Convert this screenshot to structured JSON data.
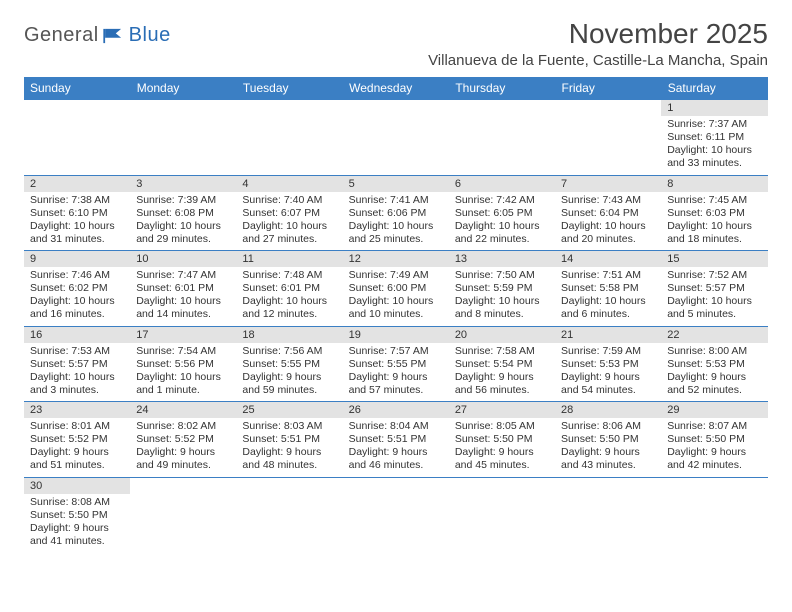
{
  "brand": {
    "part1": "General",
    "part2": "Blue"
  },
  "title": "November 2025",
  "location": "Villanueva de la Fuente, Castille-La Mancha, Spain",
  "colors": {
    "header_bg": "#3b7fc4",
    "header_text": "#ffffff",
    "daynum_bg": "#e3e3e3",
    "border": "#3b7fc4",
    "text": "#333333",
    "brand_gray": "#555555",
    "brand_blue": "#2a6db5"
  },
  "columns": [
    "Sunday",
    "Monday",
    "Tuesday",
    "Wednesday",
    "Thursday",
    "Friday",
    "Saturday"
  ],
  "weeks": [
    [
      null,
      null,
      null,
      null,
      null,
      null,
      {
        "n": "1",
        "r": "Sunrise: 7:37 AM",
        "s": "Sunset: 6:11 PM",
        "d1": "Daylight: 10 hours",
        "d2": "and 33 minutes."
      }
    ],
    [
      {
        "n": "2",
        "r": "Sunrise: 7:38 AM",
        "s": "Sunset: 6:10 PM",
        "d1": "Daylight: 10 hours",
        "d2": "and 31 minutes."
      },
      {
        "n": "3",
        "r": "Sunrise: 7:39 AM",
        "s": "Sunset: 6:08 PM",
        "d1": "Daylight: 10 hours",
        "d2": "and 29 minutes."
      },
      {
        "n": "4",
        "r": "Sunrise: 7:40 AM",
        "s": "Sunset: 6:07 PM",
        "d1": "Daylight: 10 hours",
        "d2": "and 27 minutes."
      },
      {
        "n": "5",
        "r": "Sunrise: 7:41 AM",
        "s": "Sunset: 6:06 PM",
        "d1": "Daylight: 10 hours",
        "d2": "and 25 minutes."
      },
      {
        "n": "6",
        "r": "Sunrise: 7:42 AM",
        "s": "Sunset: 6:05 PM",
        "d1": "Daylight: 10 hours",
        "d2": "and 22 minutes."
      },
      {
        "n": "7",
        "r": "Sunrise: 7:43 AM",
        "s": "Sunset: 6:04 PM",
        "d1": "Daylight: 10 hours",
        "d2": "and 20 minutes."
      },
      {
        "n": "8",
        "r": "Sunrise: 7:45 AM",
        "s": "Sunset: 6:03 PM",
        "d1": "Daylight: 10 hours",
        "d2": "and 18 minutes."
      }
    ],
    [
      {
        "n": "9",
        "r": "Sunrise: 7:46 AM",
        "s": "Sunset: 6:02 PM",
        "d1": "Daylight: 10 hours",
        "d2": "and 16 minutes."
      },
      {
        "n": "10",
        "r": "Sunrise: 7:47 AM",
        "s": "Sunset: 6:01 PM",
        "d1": "Daylight: 10 hours",
        "d2": "and 14 minutes."
      },
      {
        "n": "11",
        "r": "Sunrise: 7:48 AM",
        "s": "Sunset: 6:01 PM",
        "d1": "Daylight: 10 hours",
        "d2": "and 12 minutes."
      },
      {
        "n": "12",
        "r": "Sunrise: 7:49 AM",
        "s": "Sunset: 6:00 PM",
        "d1": "Daylight: 10 hours",
        "d2": "and 10 minutes."
      },
      {
        "n": "13",
        "r": "Sunrise: 7:50 AM",
        "s": "Sunset: 5:59 PM",
        "d1": "Daylight: 10 hours",
        "d2": "and 8 minutes."
      },
      {
        "n": "14",
        "r": "Sunrise: 7:51 AM",
        "s": "Sunset: 5:58 PM",
        "d1": "Daylight: 10 hours",
        "d2": "and 6 minutes."
      },
      {
        "n": "15",
        "r": "Sunrise: 7:52 AM",
        "s": "Sunset: 5:57 PM",
        "d1": "Daylight: 10 hours",
        "d2": "and 5 minutes."
      }
    ],
    [
      {
        "n": "16",
        "r": "Sunrise: 7:53 AM",
        "s": "Sunset: 5:57 PM",
        "d1": "Daylight: 10 hours",
        "d2": "and 3 minutes."
      },
      {
        "n": "17",
        "r": "Sunrise: 7:54 AM",
        "s": "Sunset: 5:56 PM",
        "d1": "Daylight: 10 hours",
        "d2": "and 1 minute."
      },
      {
        "n": "18",
        "r": "Sunrise: 7:56 AM",
        "s": "Sunset: 5:55 PM",
        "d1": "Daylight: 9 hours",
        "d2": "and 59 minutes."
      },
      {
        "n": "19",
        "r": "Sunrise: 7:57 AM",
        "s": "Sunset: 5:55 PM",
        "d1": "Daylight: 9 hours",
        "d2": "and 57 minutes."
      },
      {
        "n": "20",
        "r": "Sunrise: 7:58 AM",
        "s": "Sunset: 5:54 PM",
        "d1": "Daylight: 9 hours",
        "d2": "and 56 minutes."
      },
      {
        "n": "21",
        "r": "Sunrise: 7:59 AM",
        "s": "Sunset: 5:53 PM",
        "d1": "Daylight: 9 hours",
        "d2": "and 54 minutes."
      },
      {
        "n": "22",
        "r": "Sunrise: 8:00 AM",
        "s": "Sunset: 5:53 PM",
        "d1": "Daylight: 9 hours",
        "d2": "and 52 minutes."
      }
    ],
    [
      {
        "n": "23",
        "r": "Sunrise: 8:01 AM",
        "s": "Sunset: 5:52 PM",
        "d1": "Daylight: 9 hours",
        "d2": "and 51 minutes."
      },
      {
        "n": "24",
        "r": "Sunrise: 8:02 AM",
        "s": "Sunset: 5:52 PM",
        "d1": "Daylight: 9 hours",
        "d2": "and 49 minutes."
      },
      {
        "n": "25",
        "r": "Sunrise: 8:03 AM",
        "s": "Sunset: 5:51 PM",
        "d1": "Daylight: 9 hours",
        "d2": "and 48 minutes."
      },
      {
        "n": "26",
        "r": "Sunrise: 8:04 AM",
        "s": "Sunset: 5:51 PM",
        "d1": "Daylight: 9 hours",
        "d2": "and 46 minutes."
      },
      {
        "n": "27",
        "r": "Sunrise: 8:05 AM",
        "s": "Sunset: 5:50 PM",
        "d1": "Daylight: 9 hours",
        "d2": "and 45 minutes."
      },
      {
        "n": "28",
        "r": "Sunrise: 8:06 AM",
        "s": "Sunset: 5:50 PM",
        "d1": "Daylight: 9 hours",
        "d2": "and 43 minutes."
      },
      {
        "n": "29",
        "r": "Sunrise: 8:07 AM",
        "s": "Sunset: 5:50 PM",
        "d1": "Daylight: 9 hours",
        "d2": "and 42 minutes."
      }
    ],
    [
      {
        "n": "30",
        "r": "Sunrise: 8:08 AM",
        "s": "Sunset: 5:50 PM",
        "d1": "Daylight: 9 hours",
        "d2": "and 41 minutes."
      },
      null,
      null,
      null,
      null,
      null,
      null
    ]
  ]
}
